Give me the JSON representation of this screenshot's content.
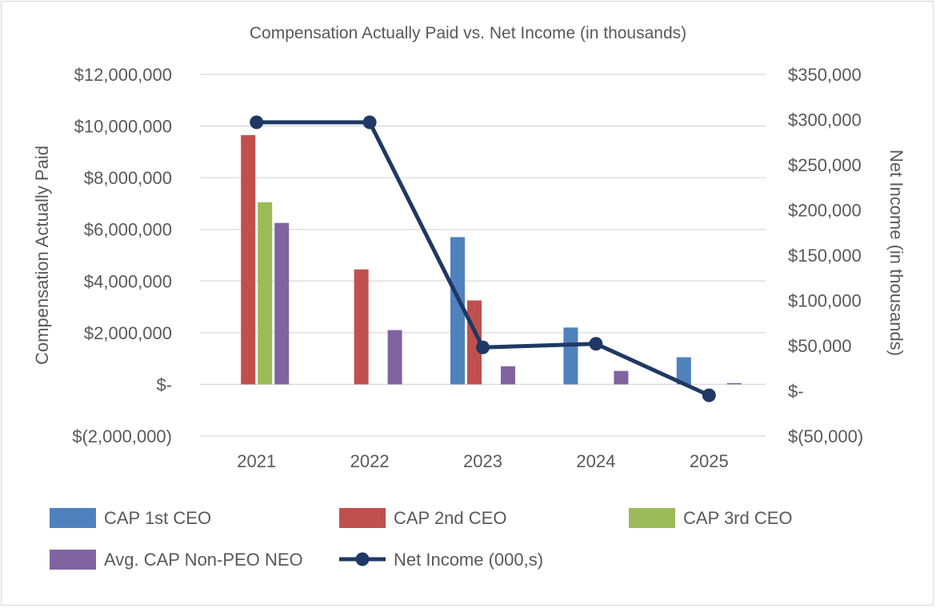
{
  "chart_data": {
    "type": "bar",
    "title": "Compensation Actually Paid vs. Net Income (in thousands)",
    "categories": [
      "2021",
      "2022",
      "2023",
      "2024",
      "2025"
    ],
    "ylabel": "Compensation Actually Paid",
    "y2label": "Net Income (in thousands)",
    "ylim": [
      -2000000,
      12000000
    ],
    "y2lim": [
      -50000,
      350000
    ],
    "y_ticks": [
      12000000,
      10000000,
      8000000,
      6000000,
      4000000,
      2000000,
      0,
      -2000000
    ],
    "y_tick_labels": [
      "$12,000,000",
      "$10,000,000",
      "$8,000,000",
      "$6,000,000",
      "$4,000,000",
      "$2,000,000",
      "$-",
      "$(2,000,000)"
    ],
    "y2_ticks": [
      350000,
      300000,
      250000,
      200000,
      150000,
      100000,
      50000,
      0,
      -50000
    ],
    "y2_tick_labels": [
      "$350,000",
      "$300,000",
      "$250,000",
      "$200,000",
      "$150,000",
      "$100,000",
      "$50,000",
      "$-",
      "$(50,000)"
    ],
    "grid": true,
    "legend_position": "bottom",
    "series": [
      {
        "name": "CAP 1st CEO",
        "type": "bar",
        "axis": "left",
        "color": "#4f81bd",
        "values": [
          null,
          null,
          5700000,
          2200000,
          1050000
        ]
      },
      {
        "name": "CAP 2nd CEO",
        "type": "bar",
        "axis": "left",
        "color": "#c0504d",
        "values": [
          9650000,
          4450000,
          3250000,
          null,
          null
        ]
      },
      {
        "name": "CAP 3rd CEO",
        "type": "bar",
        "axis": "left",
        "color": "#9bbb59",
        "values": [
          7050000,
          null,
          null,
          null,
          null
        ]
      },
      {
        "name": "Avg. CAP Non-PEO NEO",
        "type": "bar",
        "axis": "left",
        "color": "#8064a2",
        "values": [
          6250000,
          2100000,
          700000,
          520000,
          50000
        ]
      },
      {
        "name": "Net Income (000,s)",
        "type": "line",
        "axis": "right",
        "color": "#1f3864",
        "values": [
          297000,
          297000,
          48000,
          52000,
          -5000
        ]
      }
    ]
  }
}
